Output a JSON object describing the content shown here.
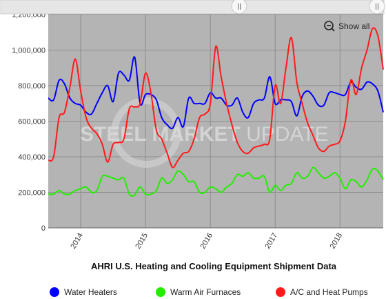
{
  "chart_data": {
    "type": "line",
    "title": "AHRI U.S. Heating and Cooling Equipment Shipment Data",
    "watermark": "STEEL MARKET UPDATE",
    "xlabel": "",
    "ylabel": "",
    "ylim": [
      0,
      1200000
    ],
    "xlim": [
      0,
      62
    ],
    "y_ticks": [
      0,
      200000,
      400000,
      600000,
      800000,
      1000000,
      1200000
    ],
    "y_tick_labels": [
      "0",
      "200,000",
      "400,000",
      "600,000",
      "800,000",
      "1,000,000",
      "1,200,000"
    ],
    "x_ticks": [
      6,
      18,
      30,
      42,
      54
    ],
    "x_tick_labels": [
      "2014",
      "2015",
      "2016",
      "2017",
      "2018"
    ],
    "x_period_start": "2013-07",
    "x_period_end": "2018-09",
    "grid": true,
    "legend_position": "bottom",
    "series": [
      {
        "name": "Water Heaters",
        "color": "#0000ff",
        "values": [
          730000,
          720000,
          830000,
          810000,
          730000,
          700000,
          690000,
          650000,
          640000,
          700000,
          760000,
          800000,
          710000,
          870000,
          860000,
          830000,
          960000,
          700000,
          750000,
          750000,
          720000,
          620000,
          580000,
          560000,
          620000,
          570000,
          730000,
          700000,
          700000,
          700000,
          760000,
          730000,
          730000,
          690000,
          690000,
          730000,
          650000,
          620000,
          700000,
          720000,
          730000,
          850000,
          700000,
          720000,
          720000,
          710000,
          630000,
          740000,
          770000,
          740000,
          690000,
          690000,
          760000,
          760000,
          750000,
          750000,
          820000,
          790000,
          780000,
          820000,
          810000,
          770000,
          650000
        ]
      },
      {
        "name": "Warm Air Furnaces",
        "color": "#22ee00",
        "values": [
          190000,
          190000,
          210000,
          190000,
          190000,
          210000,
          220000,
          230000,
          200000,
          210000,
          290000,
          290000,
          280000,
          270000,
          280000,
          190000,
          185000,
          230000,
          190000,
          190000,
          210000,
          280000,
          250000,
          270000,
          320000,
          300000,
          260000,
          260000,
          200000,
          200000,
          230000,
          220000,
          200000,
          230000,
          250000,
          300000,
          290000,
          310000,
          280000,
          280000,
          290000,
          200000,
          240000,
          210000,
          240000,
          250000,
          310000,
          280000,
          290000,
          340000,
          310000,
          280000,
          290000,
          310000,
          280000,
          220000,
          270000,
          260000,
          230000,
          270000,
          330000,
          320000,
          270000
        ]
      },
      {
        "name": "A/C and Heat Pumps",
        "color": "#ff1a1a",
        "values": [
          380000,
          400000,
          620000,
          650000,
          790000,
          950000,
          770000,
          620000,
          560000,
          530000,
          470000,
          370000,
          470000,
          480000,
          500000,
          670000,
          680000,
          700000,
          870000,
          760000,
          550000,
          500000,
          420000,
          340000,
          380000,
          420000,
          430000,
          500000,
          620000,
          640000,
          700000,
          1020000,
          850000,
          700000,
          580000,
          480000,
          430000,
          420000,
          450000,
          460000,
          470000,
          500000,
          800000,
          700000,
          900000,
          1070000,
          820000,
          700000,
          590000,
          520000,
          450000,
          430000,
          460000,
          470000,
          490000,
          600000,
          830000,
          750000,
          900000,
          1000000,
          1120000,
          1080000,
          890000
        ]
      }
    ]
  },
  "ui": {
    "show_all_label": "Show all"
  }
}
